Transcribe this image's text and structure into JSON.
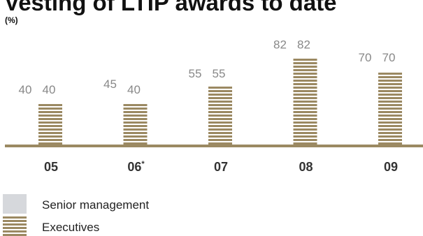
{
  "title": "Vesting of LTIP awards to date",
  "subtitle": "(%)",
  "colors": {
    "senior_management": "#d6d8dc",
    "executives": "#9b8962",
    "axis": "#9b8962",
    "value_text": "#888888",
    "category_text": "#333333"
  },
  "chart_data": {
    "type": "bar",
    "title": "Vesting of LTIP awards to date",
    "subtitle": "(%)",
    "categories": [
      {
        "label": "05",
        "marker": ""
      },
      {
        "label": "06",
        "marker": "*"
      },
      {
        "label": "07",
        "marker": ""
      },
      {
        "label": "08",
        "marker": ""
      },
      {
        "label": "09",
        "marker": ""
      }
    ],
    "series": [
      {
        "name": "Senior management",
        "values": [
          40,
          45,
          55,
          82,
          70
        ]
      },
      {
        "name": "Executives",
        "values": [
          40,
          40,
          55,
          82,
          70
        ]
      }
    ],
    "ylim": [
      0,
      100
    ],
    "grid": false,
    "legend": "bottom-left"
  },
  "legend": [
    {
      "label": "Senior management",
      "icon": "solid-grey-swatch"
    },
    {
      "label": "Executives",
      "icon": "striped-gold-swatch"
    }
  ]
}
